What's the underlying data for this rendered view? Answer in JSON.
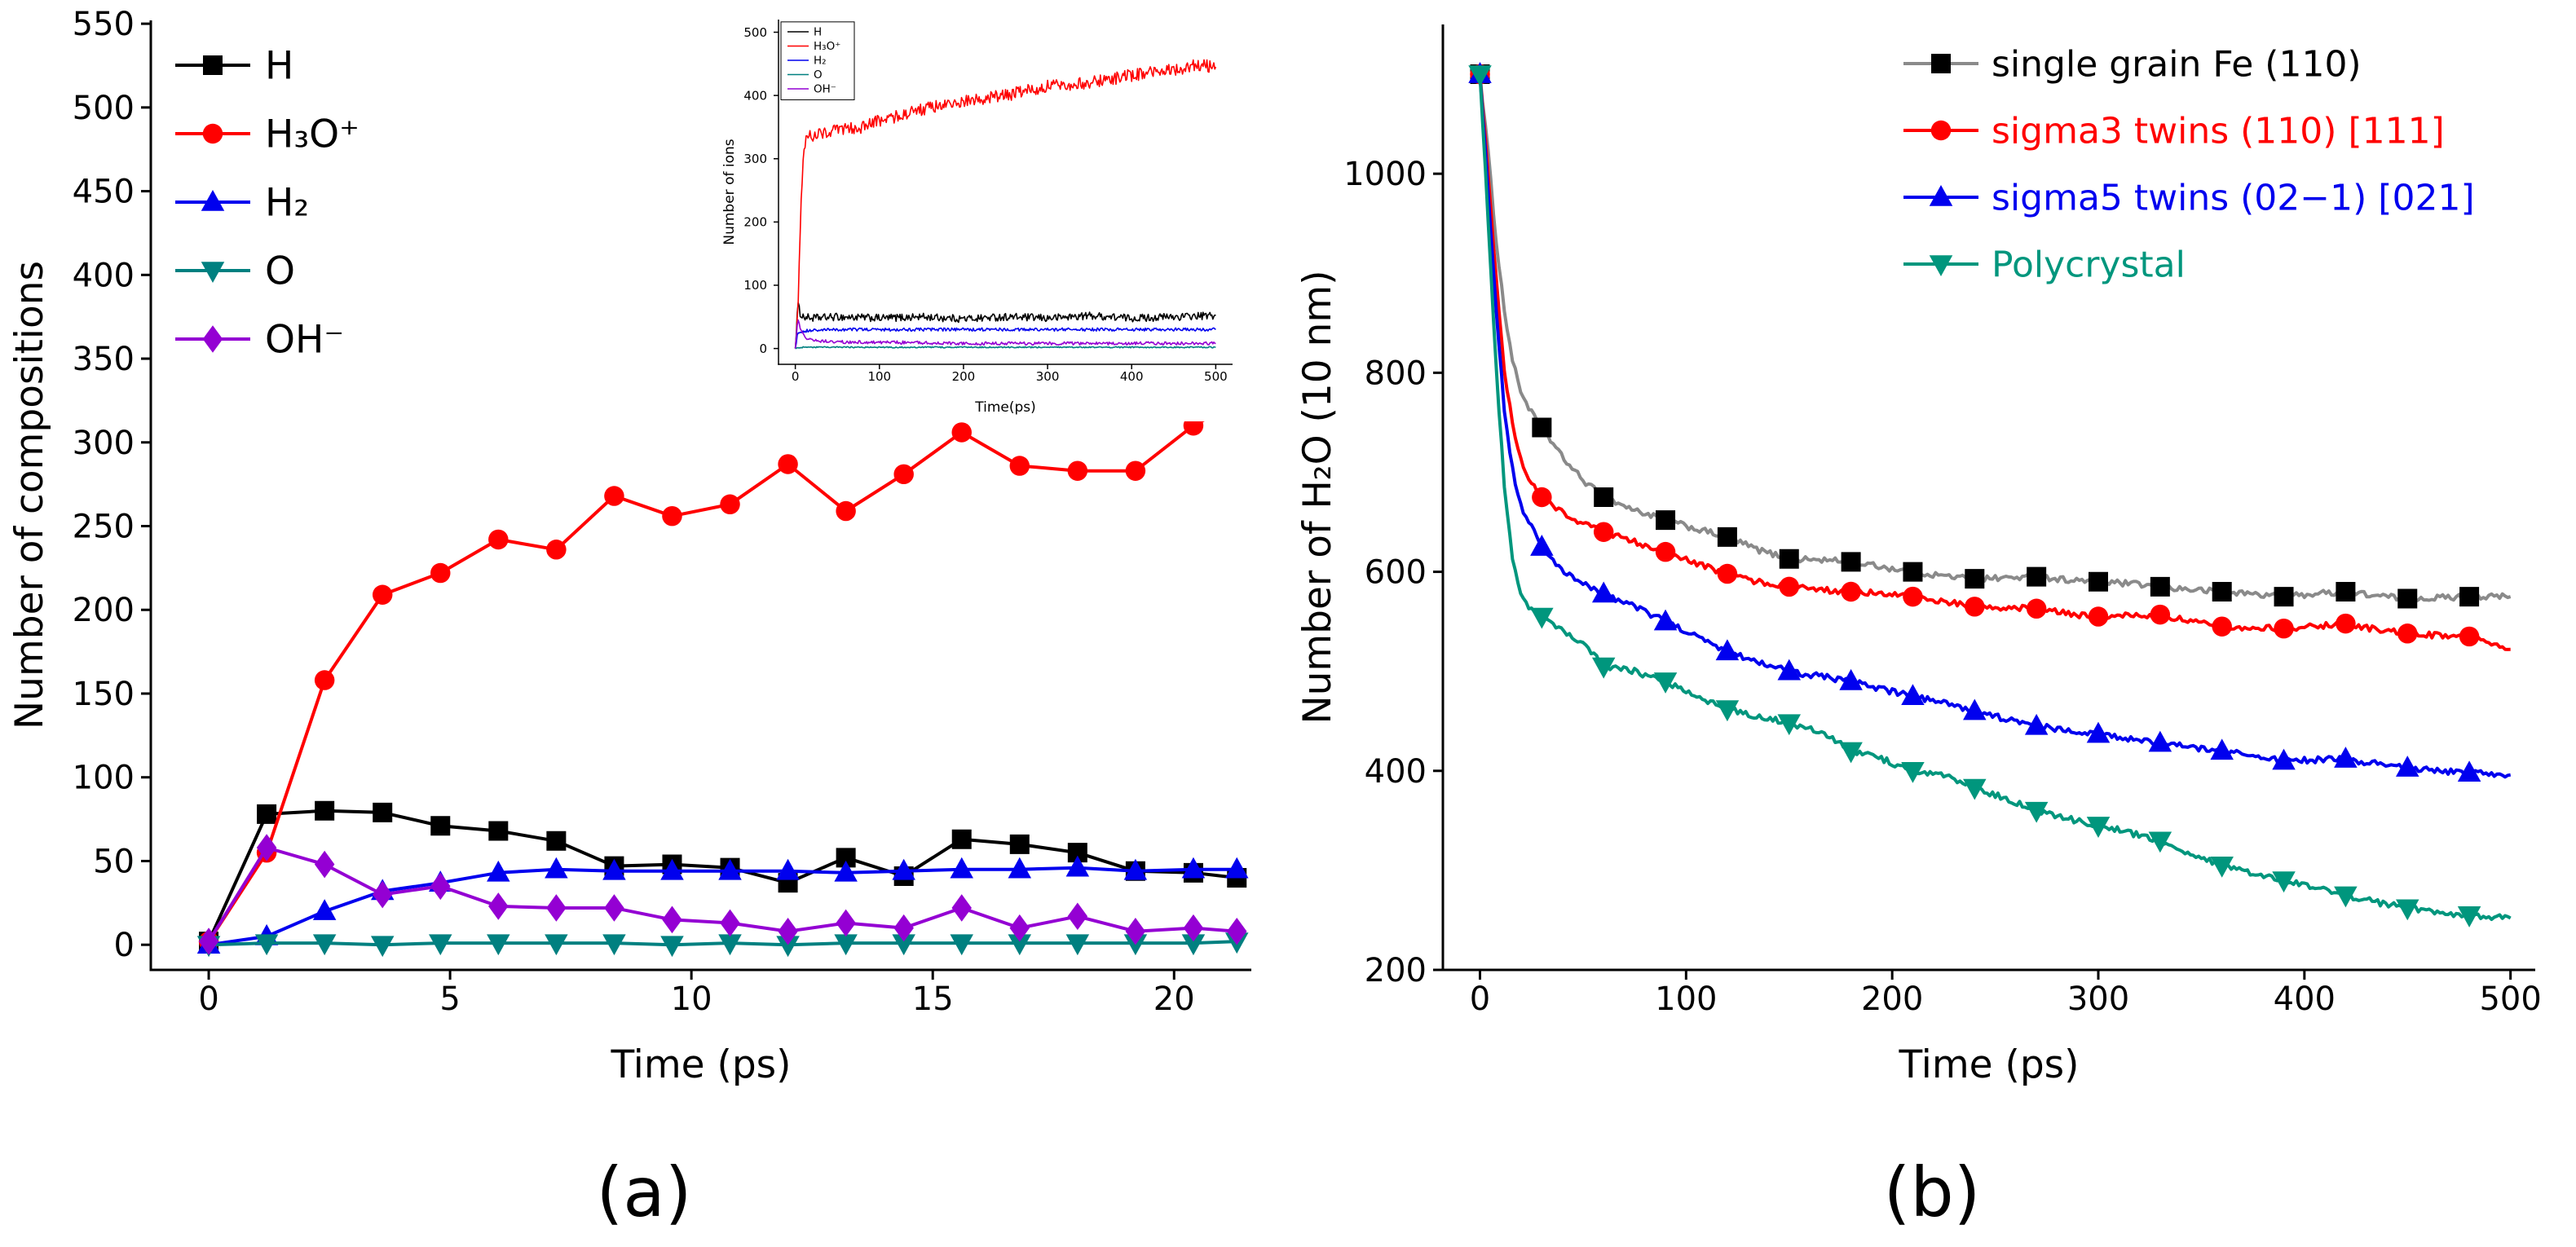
{
  "labels": {
    "panel_a": "(a)",
    "panel_b": "(b)"
  },
  "colors": {
    "black": "#000000",
    "red": "#ff0000",
    "blue": "#0000ee",
    "teal_a": "#008080",
    "teal_b": "#00967d",
    "purple": "#9400d3",
    "gray": "#8a8a8a"
  },
  "chart_data": [
    {
      "id": "chart-a",
      "type": "line",
      "title": "",
      "xlabel": "Time (ps)",
      "ylabel": "Number of compositions",
      "xlim": [
        -1.2,
        21.6
      ],
      "ylim": [
        -15,
        552
      ],
      "xticks": [
        0,
        5,
        10,
        15,
        20
      ],
      "yticks": [
        0,
        50,
        100,
        150,
        200,
        250,
        300,
        350,
        400,
        450,
        500,
        550
      ],
      "grid": false,
      "legend": {
        "position": "top-left",
        "border": false,
        "colored_text": false
      },
      "series": [
        {
          "key": "h",
          "name": "H",
          "color": "#000000",
          "marker": "square",
          "x": [
            0,
            1.2,
            2.4,
            3.6,
            4.8,
            6,
            7.2,
            8.4,
            9.6,
            10.8,
            12,
            13.2,
            14.4,
            15.6,
            16.8,
            18,
            19.2,
            20.4,
            21.3
          ],
          "y": [
            2,
            78,
            80,
            79,
            71,
            68,
            62,
            47,
            48,
            46,
            37,
            52,
            41,
            63,
            60,
            55,
            44,
            43,
            40
          ]
        },
        {
          "key": "h3o",
          "name": "H₃O⁺",
          "color": "#ff0000",
          "marker": "circle",
          "x": [
            0,
            1.2,
            2.4,
            3.6,
            4.8,
            6,
            7.2,
            8.4,
            9.6,
            10.8,
            12,
            13.2,
            14.4,
            15.6,
            16.8,
            18,
            19.2,
            20.4,
            21.3
          ],
          "y": [
            2,
            55,
            158,
            209,
            222,
            242,
            236,
            268,
            256,
            263,
            287,
            259,
            281,
            306,
            286,
            283,
            283,
            310,
            324
          ]
        },
        {
          "key": "h2",
          "name": "H₂",
          "color": "#0000ee",
          "marker": "triangle-up",
          "x": [
            0,
            1.2,
            2.4,
            3.6,
            4.8,
            6,
            7.2,
            8.4,
            9.6,
            10.8,
            12,
            13.2,
            14.4,
            15.6,
            16.8,
            18,
            19.2,
            20.4,
            21.3
          ],
          "y": [
            0,
            5,
            20,
            32,
            37,
            43,
            45,
            44,
            44,
            44,
            44,
            43,
            44,
            45,
            45,
            46,
            44,
            45,
            45
          ]
        },
        {
          "key": "o",
          "name": "O",
          "color": "#008080",
          "marker": "triangle-down",
          "x": [
            0,
            1.2,
            2.4,
            3.6,
            4.8,
            6,
            7.2,
            8.4,
            9.6,
            10.8,
            12,
            13.2,
            14.4,
            15.6,
            16.8,
            18,
            19.2,
            20.4,
            21.3
          ],
          "y": [
            0,
            1,
            1,
            0,
            1,
            1,
            1,
            1,
            0,
            1,
            0,
            1,
            1,
            1,
            1,
            1,
            1,
            1,
            2
          ]
        },
        {
          "key": "oh",
          "name": "OH⁻",
          "color": "#9400d3",
          "marker": "diamond",
          "x": [
            0,
            1.2,
            2.4,
            3.6,
            4.8,
            6,
            7.2,
            8.4,
            9.6,
            10.8,
            12,
            13.2,
            14.4,
            15.6,
            16.8,
            18,
            19.2,
            20.4,
            21.3
          ],
          "y": [
            2,
            58,
            48,
            30,
            35,
            23,
            22,
            22,
            15,
            13,
            8,
            13,
            10,
            22,
            10,
            17,
            8,
            10,
            8
          ]
        }
      ]
    },
    {
      "id": "chart-a-inset",
      "type": "line",
      "title": "",
      "xlabel": "Time(ps)",
      "ylabel": "Number of ions",
      "xlim": [
        -20,
        520
      ],
      "ylim": [
        -25,
        520
      ],
      "xticks": [
        0,
        100,
        200,
        300,
        400,
        500
      ],
      "yticks": [
        0,
        100,
        200,
        300,
        400,
        500
      ],
      "grid": false,
      "legend": {
        "position": "top-left",
        "border": true,
        "colored_text": false
      },
      "series": [
        {
          "key": "h",
          "name": "H",
          "color": "#000000",
          "noise": 6,
          "x": [
            0,
            3,
            6,
            10,
            20,
            50,
            100,
            150,
            200,
            250,
            300,
            350,
            400,
            450,
            500
          ],
          "y": [
            0,
            70,
            55,
            50,
            48,
            50,
            48,
            50,
            47,
            50,
            48,
            52,
            48,
            50,
            52
          ]
        },
        {
          "key": "h3o",
          "name": "H₃O⁺",
          "color": "#ff0000",
          "noise": 10,
          "x": [
            0,
            3,
            6,
            10,
            15,
            30,
            50,
            80,
            100,
            150,
            200,
            250,
            300,
            350,
            400,
            450,
            480,
            500
          ],
          "y": [
            0,
            60,
            200,
            320,
            335,
            340,
            345,
            350,
            360,
            378,
            390,
            400,
            415,
            420,
            432,
            440,
            448,
            445
          ]
        },
        {
          "key": "h2",
          "name": "H₂",
          "color": "#0000ee",
          "noise": 2.5,
          "x": [
            0,
            3,
            10,
            50,
            100,
            200,
            300,
            400,
            500
          ],
          "y": [
            0,
            25,
            28,
            30,
            30,
            30,
            30,
            30,
            30
          ]
        },
        {
          "key": "o",
          "name": "O",
          "color": "#008080",
          "noise": 1,
          "x": [
            0,
            10,
            500
          ],
          "y": [
            0,
            2,
            2
          ]
        },
        {
          "key": "oh",
          "name": "OH⁻",
          "color": "#9400d3",
          "noise": 2.5,
          "x": [
            0,
            3,
            8,
            15,
            30,
            60,
            100,
            200,
            300,
            400,
            500
          ],
          "y": [
            0,
            45,
            25,
            15,
            12,
            10,
            10,
            8,
            8,
            8,
            8
          ]
        }
      ]
    },
    {
      "id": "chart-b",
      "type": "line",
      "title": "",
      "xlabel": "Time (ps)",
      "ylabel": "Number of H₂O (10 nm)",
      "xlim": [
        -18,
        512
      ],
      "ylim": [
        200,
        1150
      ],
      "xticks": [
        0,
        100,
        200,
        300,
        400,
        500
      ],
      "yticks": [
        200,
        400,
        600,
        800,
        1000
      ],
      "grid": false,
      "legend": {
        "position": "top-right",
        "border": false,
        "colored_text": true
      },
      "series": [
        {
          "key": "single-grain",
          "name": "single grain Fe (110)",
          "color": "#000000",
          "line_color": "#8a8a8a",
          "marker": "square",
          "noise": 3,
          "x": [
            0,
            4,
            8,
            12,
            16,
            20,
            25,
            30,
            40,
            50,
            60,
            75,
            90,
            105,
            120,
            135,
            150,
            165,
            180,
            195,
            210,
            225,
            240,
            255,
            270,
            285,
            300,
            315,
            330,
            345,
            360,
            375,
            390,
            405,
            420,
            435,
            450,
            465,
            480,
            500
          ],
          "y": [
            1100,
            1020,
            930,
            860,
            810,
            780,
            760,
            745,
            715,
            692,
            675,
            662,
            652,
            643,
            635,
            622,
            613,
            612,
            610,
            605,
            600,
            596,
            593,
            594,
            595,
            592,
            590,
            588,
            585,
            582,
            580,
            578,
            575,
            578,
            580,
            576,
            573,
            574,
            575,
            575
          ],
          "marker_x": [
            0,
            30,
            60,
            90,
            120,
            150,
            180,
            210,
            240,
            270,
            300,
            330,
            360,
            390,
            420,
            450,
            480
          ],
          "marker_y": [
            1100,
            745,
            675,
            652,
            635,
            613,
            610,
            600,
            593,
            595,
            590,
            585,
            580,
            575,
            580,
            573,
            575
          ]
        },
        {
          "key": "sigma3",
          "name": "sigma3 twins (110) [111]",
          "color": "#ff0000",
          "marker": "circle",
          "noise": 3,
          "x": [
            0,
            4,
            8,
            12,
            16,
            20,
            25,
            30,
            40,
            50,
            60,
            75,
            90,
            105,
            120,
            135,
            150,
            165,
            180,
            195,
            210,
            225,
            240,
            255,
            270,
            285,
            300,
            315,
            330,
            345,
            360,
            375,
            390,
            405,
            420,
            435,
            450,
            465,
            480,
            500
          ],
          "y": [
            1100,
            1000,
            890,
            800,
            745,
            710,
            690,
            675,
            660,
            648,
            640,
            630,
            620,
            608,
            598,
            590,
            585,
            582,
            580,
            578,
            575,
            570,
            565,
            564,
            563,
            558,
            555,
            556,
            557,
            550,
            545,
            544,
            543,
            545,
            548,
            542,
            538,
            536,
            535,
            522
          ],
          "marker_x": [
            0,
            30,
            60,
            90,
            120,
            150,
            180,
            210,
            240,
            270,
            300,
            330,
            360,
            390,
            420,
            450,
            480
          ],
          "marker_y": [
            1100,
            675,
            640,
            620,
            598,
            585,
            580,
            575,
            565,
            563,
            555,
            557,
            545,
            543,
            548,
            538,
            535
          ]
        },
        {
          "key": "sigma5",
          "name": "sigma5 twins (02−1) [021]",
          "color": "#0000ee",
          "marker": "triangle-up",
          "noise": 3,
          "x": [
            0,
            4,
            8,
            12,
            16,
            20,
            25,
            30,
            40,
            50,
            60,
            75,
            90,
            105,
            120,
            135,
            150,
            165,
            180,
            195,
            210,
            225,
            240,
            255,
            270,
            285,
            300,
            315,
            330,
            345,
            360,
            375,
            390,
            405,
            420,
            435,
            450,
            465,
            480,
            500
          ],
          "y": [
            1100,
            980,
            860,
            760,
            700,
            665,
            645,
            625,
            600,
            588,
            578,
            565,
            550,
            535,
            520,
            510,
            500,
            495,
            490,
            482,
            475,
            468,
            460,
            452,
            445,
            441,
            437,
            432,
            428,
            424,
            420,
            415,
            410,
            411,
            412,
            407,
            403,
            400,
            398,
            396
          ],
          "marker_x": [
            0,
            30,
            60,
            90,
            120,
            150,
            180,
            210,
            240,
            270,
            300,
            330,
            360,
            390,
            420,
            450,
            480
          ],
          "marker_y": [
            1100,
            625,
            578,
            550,
            520,
            500,
            490,
            475,
            460,
            445,
            437,
            428,
            420,
            410,
            412,
            403,
            398
          ]
        },
        {
          "key": "polycrystal",
          "name": "Polycrystal",
          "color": "#00967d",
          "marker": "triangle-down",
          "noise": 3,
          "x": [
            0,
            4,
            8,
            12,
            16,
            20,
            25,
            30,
            40,
            50,
            60,
            75,
            90,
            105,
            120,
            135,
            150,
            165,
            180,
            195,
            210,
            225,
            240,
            255,
            270,
            285,
            300,
            315,
            330,
            345,
            360,
            375,
            390,
            405,
            420,
            435,
            450,
            465,
            480,
            500
          ],
          "y": [
            1100,
            950,
            800,
            680,
            610,
            575,
            562,
            555,
            540,
            528,
            505,
            500,
            490,
            475,
            462,
            455,
            448,
            440,
            420,
            412,
            400,
            395,
            383,
            372,
            360,
            352,
            345,
            338,
            330,
            315,
            305,
            297,
            290,
            283,
            275,
            268,
            262,
            258,
            255,
            252
          ],
          "marker_x": [
            0,
            30,
            60,
            90,
            120,
            150,
            180,
            210,
            240,
            270,
            300,
            330,
            360,
            390,
            420,
            450,
            480
          ],
          "marker_y": [
            1100,
            555,
            505,
            490,
            462,
            448,
            420,
            400,
            383,
            360,
            345,
            330,
            305,
            290,
            275,
            262,
            255
          ]
        }
      ]
    }
  ]
}
